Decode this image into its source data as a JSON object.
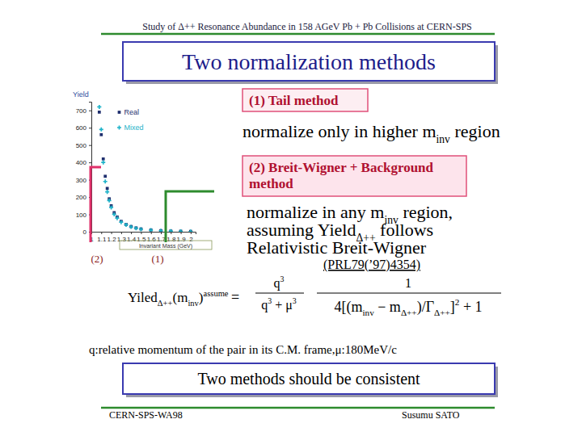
{
  "header": {
    "title": "Study of Δ++ Resonance Abundance in 158 AGeV Pb + Pb Collisions at CERN-SPS"
  },
  "slide_title": "Two normalization methods",
  "methods": [
    {
      "label": [
        "(1)  Tail method"
      ],
      "description": [
        [
          {
            "text": "normalize only in higher m",
            "sub": "inv"
          },
          {
            "text": " region"
          }
        ]
      ]
    },
    {
      "label": [
        "(2) Breit-Wigner + Background",
        "method"
      ],
      "description": [
        [
          {
            "text": "normalize in any m",
            "sub": "inv"
          },
          {
            "text": " region,"
          }
        ],
        [
          {
            "text": "assuming  Yield",
            "sub": "Δ++"
          },
          {
            "text": " follows"
          }
        ],
        [
          {
            "text": "Relativistic Breit-Wigner"
          }
        ]
      ],
      "reference": "(PRL79(’97)4354)"
    }
  ],
  "figure_labels": [
    "(2)",
    "(1)"
  ],
  "formula": {
    "lhs": [
      {
        "text": "Yiled",
        "sub": "Δ++"
      },
      {
        "text": "(m",
        "sub": "inv"
      },
      {
        "text": ")",
        "sup": "assume"
      }
    ],
    "equals": "=",
    "factor1": {
      "numerator": [
        {
          "text": "q",
          "sup": "3"
        }
      ],
      "denominator": [
        {
          "text": "q",
          "sup": "3"
        },
        {
          "text": " + μ",
          "sup": "3"
        }
      ]
    },
    "factor2": {
      "numerator": [
        {
          "text": "1"
        }
      ],
      "denominator": [
        {
          "text": "4[(m",
          "sub": "inv"
        },
        {
          "text": " − m",
          "sub": "Δ++"
        },
        {
          "text": ")/Γ",
          "sub": "Δ++"
        },
        {
          "text": "]",
          "sup": "2"
        },
        {
          "text": " + 1"
        }
      ]
    }
  },
  "footnote": "q:relative momentum of the pair in its C.M. frame,μ:180MeV/c",
  "conclusion": "Two methods should be consistent",
  "footer": {
    "left": "CERN-SPS-WA98",
    "right": "Susumu  SATO"
  },
  "chart_data": {
    "type": "scatter",
    "xlabel": "Invariant Mass (GeV)",
    "ylabel": "Yield",
    "x": [
      1.08,
      1.1,
      1.12,
      1.14,
      1.16,
      1.18,
      1.2,
      1.23,
      1.26,
      1.3,
      1.35,
      1.4,
      1.45,
      1.5,
      1.6,
      1.7,
      1.8,
      1.9,
      2.0
    ],
    "series": [
      {
        "name": "Real",
        "color": "#1f2f6e",
        "marker": "square",
        "values": [
          690,
          560,
          420,
          320,
          250,
          190,
          150,
          110,
          85,
          60,
          42,
          30,
          22,
          16,
          10,
          6,
          4,
          3,
          2
        ]
      },
      {
        "name": "Mixed",
        "color": "#1fb3c9",
        "marker": "plus",
        "values": [
          720,
          590,
          400,
          290,
          230,
          180,
          140,
          100,
          78,
          55,
          40,
          28,
          20,
          14,
          9,
          6,
          4,
          2,
          1
        ]
      }
    ],
    "xlim": [
      1.0,
      2.05
    ],
    "ylim": [
      0,
      750
    ],
    "xticks": [
      1,
      1.1,
      1.2,
      1.3,
      1.4,
      1.5,
      1.6,
      1.7,
      1.8,
      1.9,
      2
    ],
    "yticks": [
      0,
      100,
      200,
      300,
      400,
      500,
      600,
      700
    ],
    "legend": "upper center",
    "grid": false
  }
}
